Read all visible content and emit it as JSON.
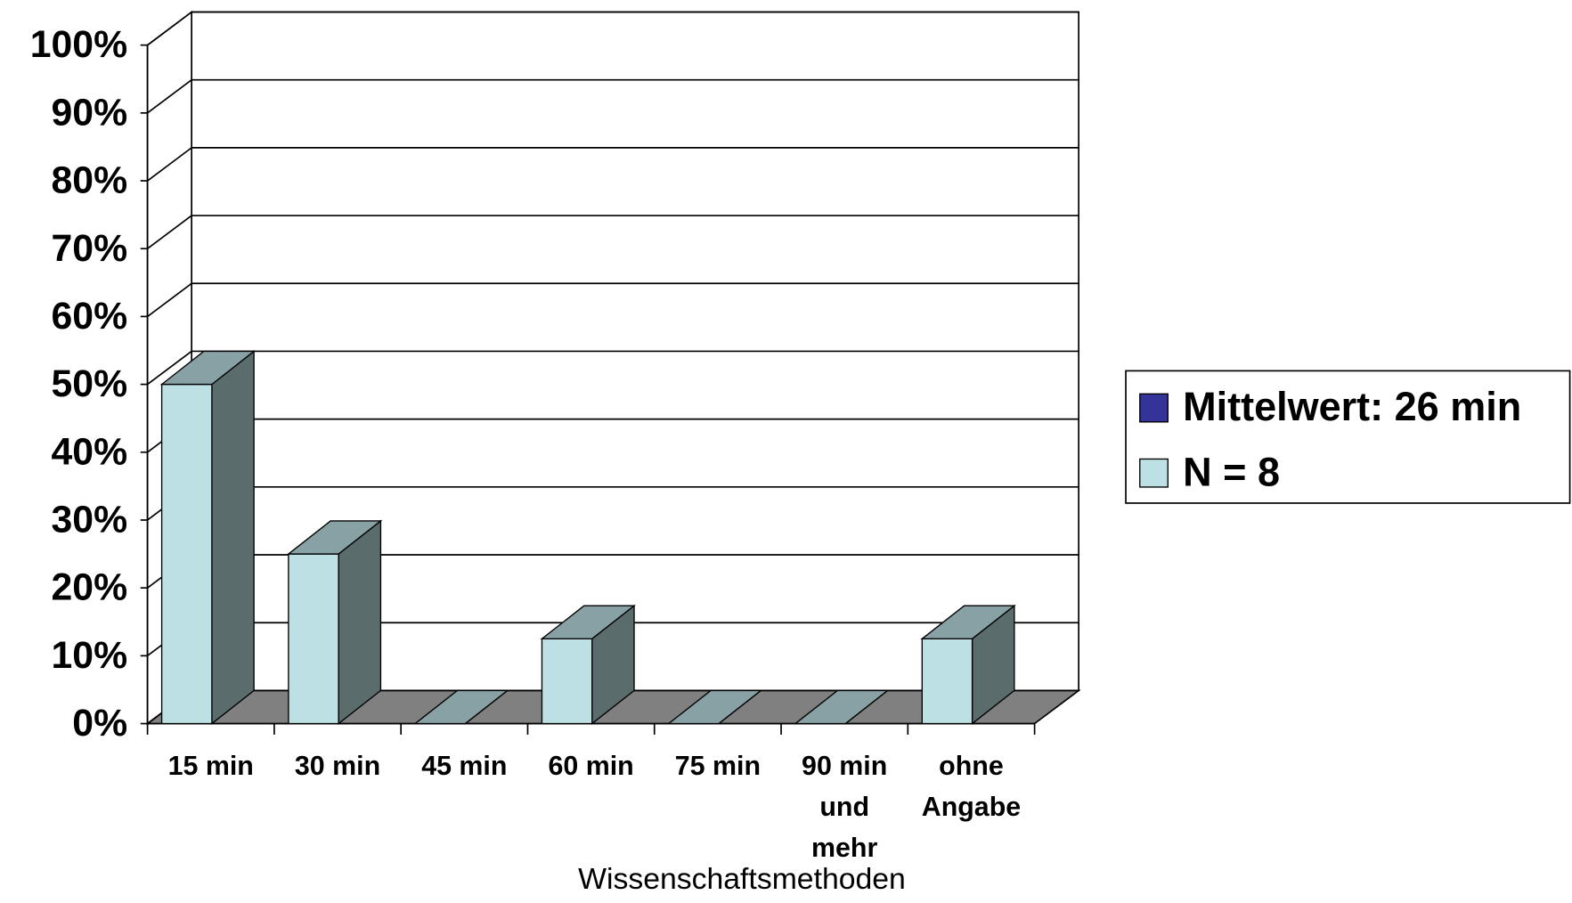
{
  "chart_data": {
    "type": "bar3d",
    "x_label": "Wissenschaftsmethoden",
    "categories": [
      "15 min",
      "30 min",
      "45 min",
      "60 min",
      "75 min",
      "90 min\nund\nmehr",
      "ohne\nAngabe"
    ],
    "series": [
      {
        "name": "Mittelwert: 26 min",
        "color": "#333399",
        "values": [
          null,
          null,
          null,
          null,
          null,
          null,
          null
        ]
      },
      {
        "name": "N = 8",
        "color": "#bde0e4",
        "values": [
          50,
          25,
          0,
          12.5,
          0,
          0,
          12.5
        ]
      }
    ],
    "ylim": [
      0,
      100
    ],
    "yticks": [
      {
        "value": 0,
        "label": "0%"
      },
      {
        "value": 10,
        "label": "10%"
      },
      {
        "value": 20,
        "label": "20%"
      },
      {
        "value": 30,
        "label": "30%"
      },
      {
        "value": 40,
        "label": "40%"
      },
      {
        "value": 50,
        "label": "50%"
      },
      {
        "value": 60,
        "label": "60%"
      },
      {
        "value": 70,
        "label": "70%"
      },
      {
        "value": 80,
        "label": "80%"
      },
      {
        "value": 90,
        "label": "90%"
      },
      {
        "value": 100,
        "label": "100%"
      }
    ],
    "grid": true,
    "legend": "right"
  }
}
